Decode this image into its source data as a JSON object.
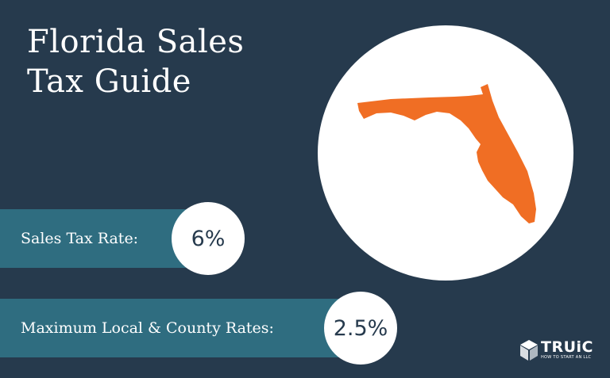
{
  "title_lines": [
    "Florida Sales",
    "Tax Guide"
  ],
  "colors": {
    "background": "#263a4d",
    "bar": "#2f6d80",
    "state": "#f06e24",
    "circle": "#ffffff",
    "value_text": "#263a4d"
  },
  "state_icon": "florida-state-map",
  "rates": [
    {
      "label": "Sales Tax Rate:",
      "value": "6%"
    },
    {
      "label": "Maximum Local & County Rates:",
      "value": "2.5%"
    }
  ],
  "brand": {
    "name": "TRUiC",
    "tagline": "HOW TO START AN LLC",
    "icon": "truic-cube-logo"
  }
}
